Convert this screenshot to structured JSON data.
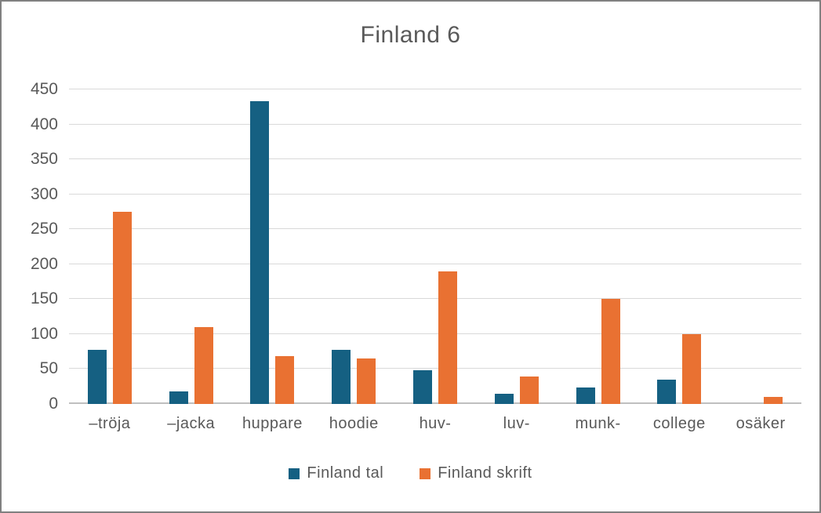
{
  "chart_data": {
    "type": "bar",
    "title": "Finland 6",
    "categories": [
      "–tröja",
      "–jacka",
      "huppare",
      "hoodie",
      "huv-",
      "luv-",
      "munk-",
      "college",
      "osäker"
    ],
    "series": [
      {
        "name": "Finland tal",
        "color": "#156082",
        "values": [
          78,
          18,
          433,
          78,
          48,
          15,
          24,
          35,
          0
        ]
      },
      {
        "name": "Finland skrift",
        "color": "#E97132",
        "values": [
          275,
          110,
          68,
          65,
          190,
          39,
          150,
          100,
          10
        ]
      }
    ],
    "ylim": [
      0,
      450
    ],
    "ytick_step": 50,
    "ytick_labels": [
      "0",
      "50",
      "100",
      "150",
      "200",
      "250",
      "300",
      "350",
      "400",
      "450"
    ],
    "grid": true,
    "legend_position": "bottom",
    "colors": {
      "text": "#595959",
      "gridline": "#d9d9d9",
      "axis_line": "#bfbfbf",
      "border": "#808080"
    }
  }
}
